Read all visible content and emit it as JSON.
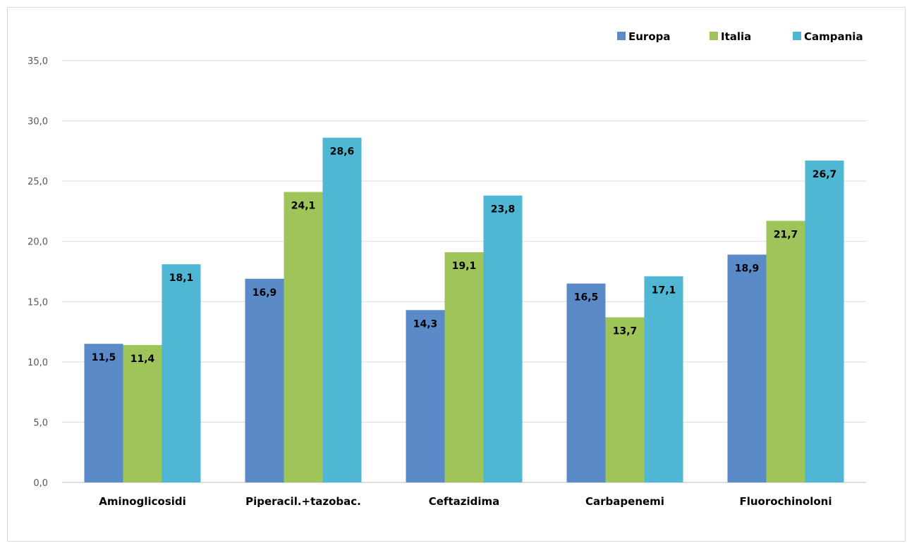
{
  "colors": {
    "Europa": "#5b8ac9",
    "Italia": "#9fc45a",
    "Campania": "#4fb6d3",
    "grid": "#d9d9d9"
  },
  "chart_data": {
    "type": "bar",
    "categories": [
      "Aminoglicosidi",
      "Piperacil.+tazobac.",
      "Ceftazidima",
      "Carbapenemi",
      "Fluorochinoloni"
    ],
    "series": [
      {
        "name": "Europa",
        "values": [
          11.5,
          16.9,
          14.3,
          16.5,
          18.9
        ],
        "labels": [
          "11,5",
          "16,9",
          "14,3",
          "16,5",
          "18,9"
        ]
      },
      {
        "name": "Italia",
        "values": [
          11.4,
          24.1,
          19.1,
          13.7,
          21.7
        ],
        "labels": [
          "11,4",
          "24,1",
          "19,1",
          "13,7",
          "21,7"
        ]
      },
      {
        "name": "Campania",
        "values": [
          18.1,
          28.6,
          23.8,
          17.1,
          26.7
        ],
        "labels": [
          "18,1",
          "28,6",
          "23,8",
          "17,1",
          "26,7"
        ]
      }
    ],
    "title": "",
    "xlabel": "",
    "ylabel": "",
    "ylim": [
      0,
      35
    ],
    "yticks": [
      0,
      5,
      10,
      15,
      20,
      25,
      30,
      35
    ],
    "ytick_labels": [
      "0,0",
      "5,0",
      "10,0",
      "15,0",
      "20,0",
      "25,0",
      "30,0",
      "35,0"
    ],
    "grid": true,
    "legend_position": "top-right"
  }
}
